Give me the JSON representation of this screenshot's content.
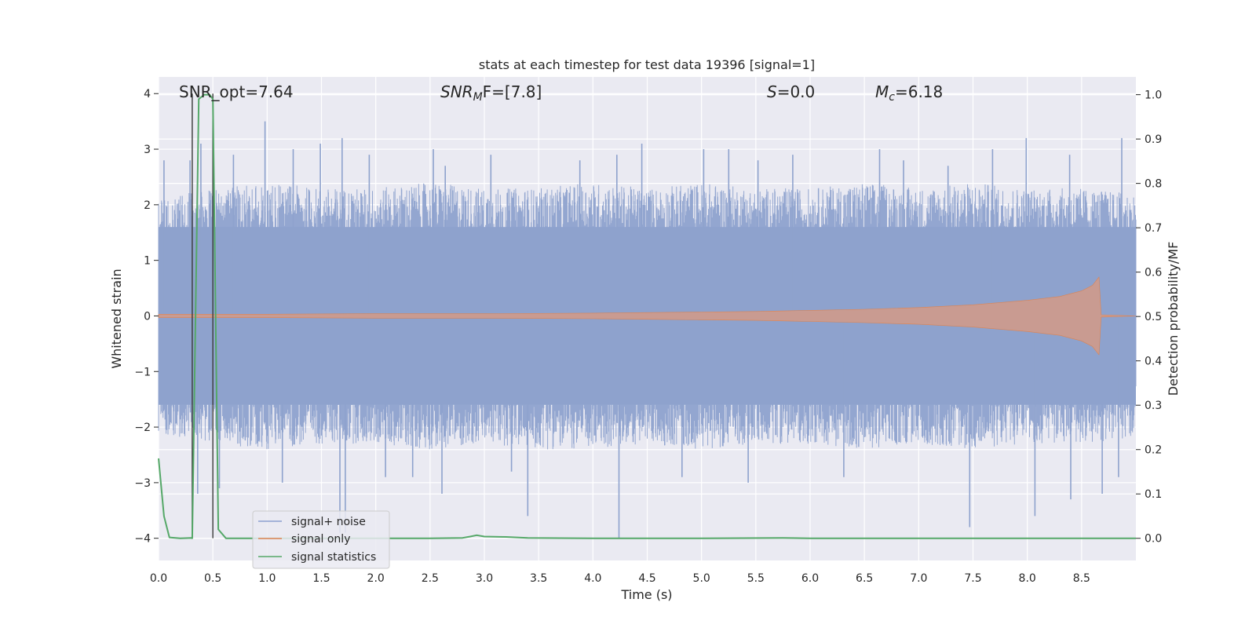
{
  "chart_data": {
    "type": "line",
    "title": "stats at each timestep for test data 19396 [signal=1]",
    "xlabel": "Time (s)",
    "ylabel_left": "Whitened strain",
    "ylabel_right": "Detection probability/MF",
    "xlim": [
      0.0,
      9.0
    ],
    "ylim_left": [
      -4.4,
      4.3
    ],
    "ylim_right": [
      -0.05,
      1.04
    ],
    "x_ticks": [
      "0.0",
      "0.5",
      "1.0",
      "1.5",
      "2.0",
      "2.5",
      "3.0",
      "3.5",
      "4.0",
      "4.5",
      "5.0",
      "5.5",
      "6.0",
      "6.5",
      "7.0",
      "7.5",
      "8.0",
      "8.5"
    ],
    "y_ticks_left": [
      "4",
      "3",
      "2",
      "1",
      "0",
      "−1",
      "−2",
      "−3",
      "−4"
    ],
    "y_ticks_right": [
      "1.0",
      "0.9",
      "0.8",
      "0.7",
      "0.6",
      "0.5",
      "0.4",
      "0.3",
      "0.2",
      "0.1",
      "0.0"
    ],
    "grid": true,
    "annotations": {
      "snr_opt": "SNR_opt=7.64",
      "snr_mf_base": "SNR",
      "snr_mf_sub": "M",
      "snr_mf_rest": "F=[7.8]",
      "s_var": "S",
      "s_rest": "=0.0",
      "mc_base": "M",
      "mc_sub": "c",
      "mc_rest": "=6.18"
    },
    "legend": {
      "placement": "lower-left",
      "entries": [
        {
          "label": "signal+ noise",
          "color": "#8c9fcf"
        },
        {
          "label": "signal only",
          "color": "#dd8452"
        },
        {
          "label": "signal statistics",
          "color": "#55a868"
        }
      ]
    },
    "series": [
      {
        "name": "signal+ noise",
        "axis": "left",
        "color": "#8ea2cd",
        "style": "dense noise, envelope approx. -2.5 to 2.5 with peaks to about ±3.8",
        "envelope_upper": [
          [
            0.0,
            2.1
          ],
          [
            0.5,
            2.3
          ],
          [
            1.0,
            2.4
          ],
          [
            1.5,
            2.3
          ],
          [
            2.0,
            2.3
          ],
          [
            2.5,
            2.4
          ],
          [
            3.0,
            2.3
          ],
          [
            3.5,
            2.3
          ],
          [
            4.0,
            2.4
          ],
          [
            4.5,
            2.3
          ],
          [
            5.0,
            2.4
          ],
          [
            5.5,
            2.3
          ],
          [
            6.0,
            2.3
          ],
          [
            6.5,
            2.4
          ],
          [
            7.0,
            2.3
          ],
          [
            7.5,
            2.4
          ],
          [
            8.0,
            2.3
          ],
          [
            8.5,
            2.3
          ],
          [
            9.0,
            2.2
          ]
        ],
        "envelope_lower": [
          [
            0.0,
            -2.1
          ],
          [
            0.5,
            -2.3
          ],
          [
            1.0,
            -2.4
          ],
          [
            1.5,
            -2.3
          ],
          [
            2.0,
            -2.3
          ],
          [
            2.5,
            -2.4
          ],
          [
            3.0,
            -2.3
          ],
          [
            3.5,
            -2.4
          ],
          [
            4.0,
            -2.4
          ],
          [
            4.5,
            -2.3
          ],
          [
            5.0,
            -2.4
          ],
          [
            5.5,
            -2.3
          ],
          [
            6.0,
            -2.3
          ],
          [
            6.5,
            -2.4
          ],
          [
            7.0,
            -2.3
          ],
          [
            7.5,
            -2.4
          ],
          [
            8.0,
            -2.3
          ],
          [
            8.5,
            -2.3
          ],
          [
            9.0,
            -2.2
          ]
        ],
        "peaks": [
          [
            0.05,
            2.8
          ],
          [
            0.29,
            2.8
          ],
          [
            0.39,
            3.1
          ],
          [
            0.69,
            2.9
          ],
          [
            0.98,
            3.5
          ],
          [
            1.24,
            3.0
          ],
          [
            1.49,
            3.1
          ],
          [
            1.69,
            3.2
          ],
          [
            1.94,
            2.9
          ],
          [
            2.53,
            3.0
          ],
          [
            2.64,
            2.7
          ],
          [
            3.06,
            2.9
          ],
          [
            3.88,
            2.8
          ],
          [
            4.22,
            2.9
          ],
          [
            4.45,
            3.1
          ],
          [
            5.02,
            3.0
          ],
          [
            5.25,
            3.0
          ],
          [
            5.52,
            2.8
          ],
          [
            5.84,
            2.9
          ],
          [
            6.64,
            3.0
          ],
          [
            6.86,
            2.8
          ],
          [
            7.27,
            2.7
          ],
          [
            7.68,
            3.0
          ],
          [
            7.99,
            3.2
          ],
          [
            8.39,
            2.9
          ],
          [
            8.87,
            3.2
          ],
          [
            0.36,
            -3.2
          ],
          [
            0.56,
            -3.1
          ],
          [
            1.14,
            -3.0
          ],
          [
            1.67,
            -3.9
          ],
          [
            1.72,
            -3.9
          ],
          [
            2.09,
            -2.9
          ],
          [
            2.34,
            -2.9
          ],
          [
            2.61,
            -3.2
          ],
          [
            3.25,
            -2.8
          ],
          [
            3.4,
            -3.6
          ],
          [
            4.24,
            -4.0
          ],
          [
            4.82,
            -2.9
          ],
          [
            5.43,
            -3.0
          ],
          [
            6.31,
            -2.9
          ],
          [
            7.47,
            -3.8
          ],
          [
            8.07,
            -3.6
          ],
          [
            8.4,
            -3.3
          ],
          [
            8.69,
            -3.2
          ],
          [
            8.84,
            -2.9
          ]
        ]
      },
      {
        "name": "signal only",
        "axis": "left",
        "color": "#dd8452",
        "style": "chirp whose amplitude grows from about 0.03 at t=0 to about 0.7 at t=8.66 then stops",
        "amplitude": [
          [
            0.0,
            0.03
          ],
          [
            1.0,
            0.03
          ],
          [
            2.0,
            0.04
          ],
          [
            3.0,
            0.04
          ],
          [
            4.0,
            0.05
          ],
          [
            4.5,
            0.06
          ],
          [
            5.0,
            0.07
          ],
          [
            5.5,
            0.08
          ],
          [
            6.0,
            0.1
          ],
          [
            6.5,
            0.12
          ],
          [
            7.0,
            0.15
          ],
          [
            7.5,
            0.2
          ],
          [
            8.0,
            0.28
          ],
          [
            8.3,
            0.35
          ],
          [
            8.5,
            0.45
          ],
          [
            8.6,
            0.55
          ],
          [
            8.66,
            0.7
          ],
          [
            8.68,
            0.02
          ],
          [
            9.0,
            0.0
          ]
        ]
      },
      {
        "name": "signal statistics",
        "axis": "right",
        "color": "#55a868",
        "x": [
          0.0,
          0.05,
          0.1,
          0.2,
          0.3,
          0.31,
          0.37,
          0.42,
          0.47,
          0.5,
          0.55,
          0.62,
          0.75,
          1.0,
          1.5,
          2.0,
          2.5,
          2.8,
          2.87,
          2.93,
          3.0,
          3.2,
          3.4,
          4.0,
          5.0,
          5.75,
          6.0,
          7.0,
          8.0,
          9.0
        ],
        "values": [
          0.18,
          0.05,
          0.002,
          0.0,
          0.001,
          0.0,
          0.99,
          1.0,
          1.0,
          0.99,
          0.02,
          0.0,
          0.0,
          0.0,
          0.0,
          0.0,
          0.0,
          0.001,
          0.004,
          0.007,
          0.004,
          0.003,
          0.001,
          0.0,
          0.0,
          0.001,
          0.0,
          0.0,
          0.0,
          0.0
        ]
      }
    ],
    "vertical_lines": [
      0.31,
      0.5
    ]
  }
}
